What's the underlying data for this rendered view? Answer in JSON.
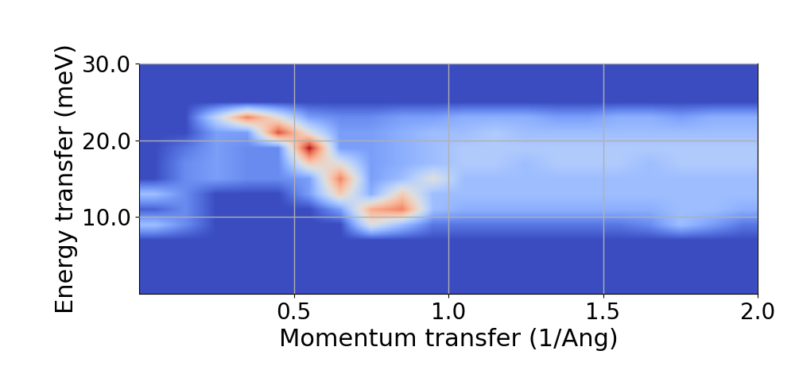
{
  "chart_data": {
    "type": "heatmap",
    "x_label": "Momentum transfer (1/Ang)",
    "y_label": "Energy transfer (meV)",
    "xlim": [
      0,
      2
    ],
    "ylim": [
      0,
      30
    ],
    "xticks": [
      0.5,
      {
        "value": 1.0,
        "label": "1.0"
      },
      1.5,
      {
        "value": 2.0,
        "label": "2.0"
      }
    ],
    "yticks": [
      {
        "value": 10,
        "label": "10.0"
      },
      {
        "value": 20,
        "label": "20.0"
      },
      {
        "value": 30,
        "label": "30.0"
      }
    ],
    "grid": true,
    "color": "coolwarm",
    "x_edges": [
      0,
      0.1,
      0.2,
      0.3,
      0.4,
      0.5,
      0.6,
      0.7,
      0.8,
      0.9,
      1.0,
      1.1,
      1.2,
      1.3,
      1.4,
      1.5,
      1.6,
      1.7,
      1.8,
      1.9,
      2.0
    ],
    "y_edges": [
      0,
      2,
      4,
      6,
      8,
      10,
      12,
      14,
      16,
      18,
      20,
      22,
      24,
      26,
      28,
      30
    ],
    "cells": [
      [
        0,
        0,
        0,
        0,
        0,
        0,
        0,
        0,
        0,
        0,
        0,
        0,
        0,
        0,
        0,
        0,
        0,
        0,
        0,
        0
      ],
      [
        0,
        0,
        0,
        0,
        0,
        0,
        0,
        0,
        0,
        0,
        0,
        0,
        0,
        0,
        0,
        0,
        0,
        0,
        0,
        0
      ],
      [
        0,
        0,
        0,
        0,
        0,
        0,
        0,
        0,
        0,
        0,
        0,
        0,
        0,
        0,
        0,
        0,
        0,
        0,
        0,
        0
      ],
      [
        0,
        0,
        0,
        0,
        0,
        0,
        0,
        0,
        0,
        0,
        0,
        0,
        0,
        0,
        0,
        0,
        0,
        0,
        0,
        0
      ],
      [
        0.3,
        0.15,
        0,
        0,
        0,
        0,
        0,
        0.5,
        0.3,
        0.1,
        0.1,
        0.1,
        0.1,
        0.1,
        0.1,
        0.1,
        0.15,
        0.3,
        0.2,
        0.1
      ],
      [
        0.05,
        0.15,
        0,
        0,
        0,
        0,
        0.2,
        0.7,
        0.8,
        0.3,
        0.25,
        0.25,
        0.25,
        0.25,
        0.25,
        0.25,
        0.25,
        0.3,
        0.3,
        0.25
      ],
      [
        0.3,
        0.15,
        0,
        0,
        0,
        0.2,
        0.6,
        0.25,
        0.6,
        0.3,
        0.3,
        0.3,
        0.3,
        0.3,
        0.3,
        0.3,
        0.3,
        0.3,
        0.3,
        0.3
      ],
      [
        0,
        0.15,
        0.2,
        0.15,
        0.15,
        0.2,
        0.8,
        0.2,
        0.3,
        0.5,
        0.3,
        0.3,
        0.3,
        0.3,
        0.3,
        0.3,
        0.3,
        0.3,
        0.3,
        0.3
      ],
      [
        0,
        0.15,
        0.2,
        0.15,
        0.15,
        0.6,
        0.5,
        0.2,
        0.25,
        0.3,
        0.35,
        0.35,
        0.3,
        0.35,
        0.35,
        0.35,
        0.3,
        0.35,
        0.35,
        0.35
      ],
      [
        0,
        0.1,
        0.2,
        0.15,
        0.15,
        1.0,
        0.2,
        0.2,
        0.25,
        0.3,
        0.35,
        0.35,
        0.35,
        0.35,
        0.35,
        0.35,
        0.35,
        0.35,
        0.35,
        0.35
      ],
      [
        0,
        0,
        0.2,
        0.2,
        0.9,
        0.5,
        0.2,
        0.2,
        0.25,
        0.3,
        0.3,
        0.35,
        0.3,
        0.3,
        0.3,
        0.3,
        0.3,
        0.3,
        0.3,
        0.3
      ],
      [
        0,
        0,
        0.4,
        0.8,
        0.5,
        0.2,
        0.15,
        0.15,
        0.2,
        0.2,
        0.25,
        0.25,
        0.25,
        0.2,
        0.2,
        0.25,
        0.25,
        0.2,
        0.25,
        0.25
      ],
      [
        0,
        0,
        0,
        0,
        0,
        0,
        0,
        0,
        0,
        0,
        0,
        0,
        0,
        0,
        0,
        0,
        0,
        0,
        0,
        0
      ],
      [
        0,
        0,
        0,
        0,
        0,
        0,
        0,
        0,
        0,
        0,
        0,
        0,
        0,
        0,
        0,
        0,
        0,
        0,
        0,
        0
      ],
      [
        0,
        0,
        0,
        0,
        0,
        0,
        0,
        0,
        0,
        0,
        0,
        0,
        0,
        0,
        0,
        0,
        0,
        0,
        0,
        0
      ]
    ]
  }
}
